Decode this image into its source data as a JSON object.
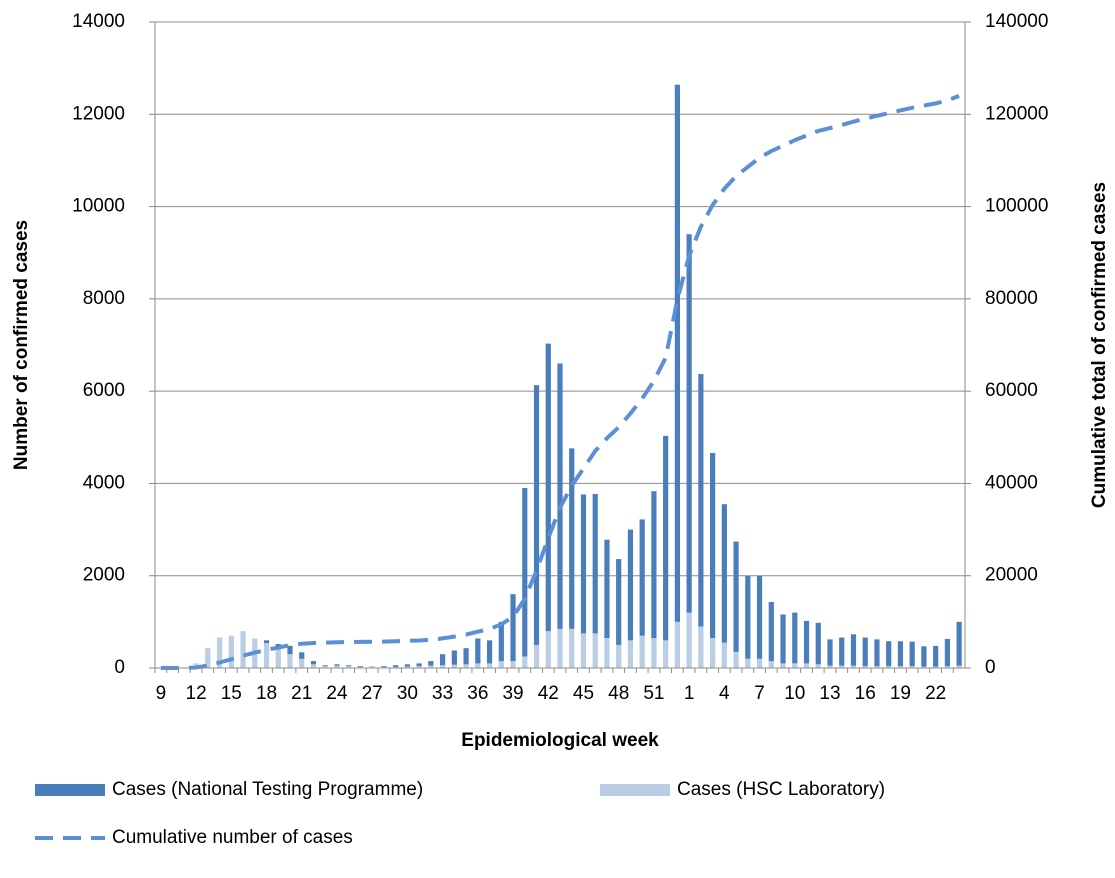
{
  "chart_data": {
    "type": "stacked-bar-line",
    "x_label": "Epidemiological week",
    "y_label": "Number of confirmed cases",
    "y2_label": "Cumulative total of confirmed cases",
    "categories": [
      "9",
      null,
      null,
      "12",
      null,
      null,
      "15",
      null,
      null,
      "18",
      null,
      null,
      "21",
      null,
      null,
      "24",
      null,
      null,
      "27",
      null,
      null,
      "30",
      null,
      null,
      "33",
      null,
      null,
      "36",
      null,
      null,
      "39",
      null,
      null,
      "42",
      null,
      null,
      "45",
      null,
      null,
      "48",
      null,
      null,
      "51",
      null,
      null,
      "1",
      null,
      null,
      "4",
      null,
      null,
      "7",
      null,
      null,
      "10",
      null,
      null,
      "13",
      null,
      null,
      "16",
      null,
      null,
      "19",
      null,
      null,
      "22",
      null,
      null
    ],
    "series": [
      {
        "name": "Cases (National Testing Programme)",
        "color": "#4a7ebb",
        "kind": "bar",
        "values": [
          0,
          0,
          0,
          0,
          0,
          0,
          0,
          0,
          0,
          60,
          100,
          180,
          140,
          70,
          20,
          30,
          20,
          20,
          10,
          20,
          40,
          50,
          60,
          100,
          240,
          310,
          350,
          540,
          500,
          850,
          1450,
          3650,
          5630,
          6230,
          5750,
          3910,
          3010,
          3020,
          2130,
          1860,
          2400,
          2520,
          3180,
          4430,
          11640,
          8200,
          5470,
          4010,
          3000,
          2390,
          1800,
          1800,
          1280,
          1060,
          1100,
          920,
          900,
          570,
          610,
          680,
          620,
          580,
          540,
          540,
          530,
          440,
          450,
          590,
          950
        ]
      },
      {
        "name": "Cases (HSC Laboratory)",
        "color": "#b9cde5",
        "kind": "bar",
        "values": [
          0,
          0,
          0,
          100,
          430,
          660,
          700,
          800,
          640,
          540,
          420,
          300,
          200,
          80,
          40,
          50,
          40,
          20,
          20,
          20,
          20,
          30,
          40,
          50,
          60,
          70,
          80,
          100,
          100,
          150,
          150,
          250,
          500,
          800,
          850,
          850,
          750,
          750,
          650,
          500,
          600,
          700,
          650,
          600,
          1000,
          1200,
          900,
          650,
          550,
          350,
          200,
          200,
          150,
          100,
          100,
          100,
          80,
          50,
          50,
          50,
          40,
          40,
          40,
          40,
          40,
          30,
          30,
          40,
          50
        ]
      },
      {
        "name": "Cumulative number of cases",
        "color": "#5b8fd6",
        "kind": "line",
        "axis": "y2",
        "values": [
          0,
          0,
          0,
          100,
          530,
          1190,
          1890,
          2690,
          3330,
          3930,
          4450,
          4930,
          5270,
          5420,
          5480,
          5560,
          5620,
          5660,
          5690,
          5730,
          5790,
          5870,
          5970,
          6120,
          6420,
          6800,
          7230,
          7870,
          8470,
          9470,
          11070,
          14970,
          21100,
          28130,
          34730,
          39490,
          43250,
          47020,
          49800,
          52160,
          55160,
          58380,
          62210,
          67240,
          79880,
          89280,
          95650,
          100310,
          103860,
          106600,
          108600,
          110600,
          112030,
          113190,
          114390,
          115410,
          116390,
          117010,
          117670,
          118400,
          119060,
          119680,
          120260,
          120840,
          121410,
          121880,
          122360,
          122990,
          123990
        ]
      }
    ],
    "ylim": [
      0,
      14000
    ],
    "yticks": [
      0,
      2000,
      4000,
      6000,
      8000,
      10000,
      12000,
      14000
    ],
    "y2lim": [
      0,
      140000
    ],
    "y2ticks": [
      0,
      20000,
      40000,
      60000,
      80000,
      100000,
      120000,
      140000
    ],
    "grid": true,
    "legend": "bottom"
  }
}
